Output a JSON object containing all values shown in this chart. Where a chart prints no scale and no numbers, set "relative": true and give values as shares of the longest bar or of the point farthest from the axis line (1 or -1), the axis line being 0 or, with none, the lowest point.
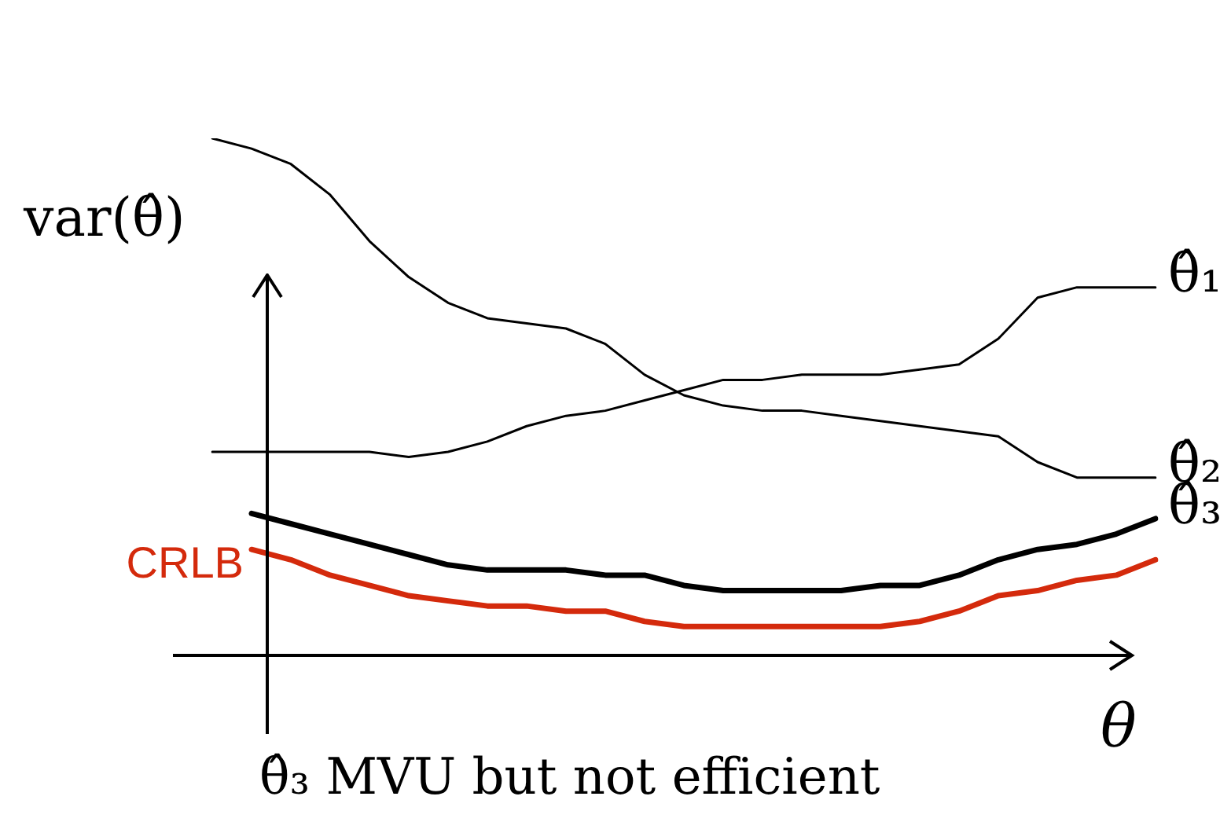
{
  "chart_data": {
    "type": "line",
    "relative": true,
    "legend": false,
    "ylabel": "var(θ̂)",
    "xlabel": "θ",
    "annotations": [
      "θ̂₃ MVU but not efficient"
    ],
    "categories": [
      null,
      null,
      null,
      null,
      null,
      null,
      null,
      null,
      null,
      null,
      null,
      null,
      null,
      null,
      null,
      null,
      null,
      null,
      null,
      null,
      null,
      null,
      null,
      null,
      null
    ],
    "series": [
      {
        "name": "θ̂₁",
        "color": "#000000",
        "values": [
          0.39,
          0.39,
          0.39,
          0.39,
          0.39,
          0.38,
          0.39,
          0.41,
          0.44,
          0.46,
          0.47,
          0.49,
          0.51,
          0.53,
          0.53,
          0.54,
          0.54,
          0.54,
          0.55,
          0.56,
          0.61,
          0.69,
          0.71,
          0.71,
          0.71
        ]
      },
      {
        "name": "θ̂₂",
        "color": "#000000",
        "values": [
          1.0,
          0.98,
          0.95,
          0.89,
          0.8,
          0.73,
          0.68,
          0.65,
          0.64,
          0.63,
          0.6,
          0.54,
          0.5,
          0.48,
          0.47,
          0.47,
          0.46,
          0.45,
          0.44,
          0.43,
          0.42,
          0.37,
          0.34,
          0.34,
          0.34
        ]
      },
      {
        "name": "θ̂₃",
        "color": "#000000",
        "values": [
          null,
          0.27,
          0.25,
          0.23,
          0.21,
          0.19,
          0.17,
          0.16,
          0.16,
          0.16,
          0.15,
          0.15,
          0.13,
          0.12,
          0.12,
          0.12,
          0.12,
          0.13,
          0.13,
          0.15,
          0.18,
          0.2,
          0.21,
          0.23,
          0.26
        ]
      },
      {
        "name": "CRLB",
        "color": "#d42a0c",
        "values": [
          null,
          0.2,
          0.18,
          0.15,
          0.13,
          0.11,
          0.1,
          0.09,
          0.09,
          0.08,
          0.08,
          0.06,
          0.05,
          0.05,
          0.05,
          0.05,
          0.05,
          0.05,
          0.06,
          0.08,
          0.11,
          0.12,
          0.14,
          0.15,
          0.18
        ]
      }
    ]
  }
}
